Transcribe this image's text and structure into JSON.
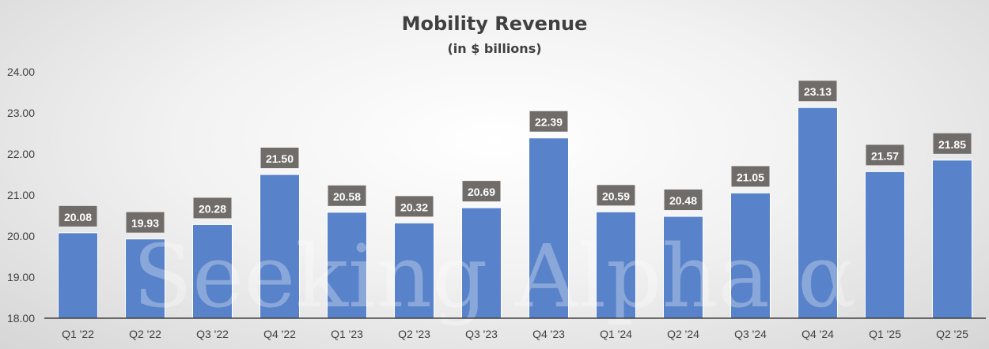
{
  "chart_data": {
    "type": "bar",
    "title": "Mobility Revenue",
    "subtitle": "(in $ billions)",
    "xlabel": "",
    "ylabel": "",
    "ylim": [
      18,
      24
    ],
    "yticks": [
      "18.00",
      "19.00",
      "20.00",
      "21.00",
      "22.00",
      "23.00",
      "24.00"
    ],
    "grid": false,
    "categories": [
      "Q1 '22",
      "Q2 '22",
      "Q3 '22",
      "Q4 '22",
      "Q1 '23",
      "Q2 '23",
      "Q3 '23",
      "Q4 '23",
      "Q1 '24",
      "Q2 '24",
      "Q3 '24",
      "Q4 '24",
      "Q1 '25",
      "Q2 '25"
    ],
    "values": [
      20.08,
      19.93,
      20.28,
      21.5,
      20.58,
      20.32,
      20.69,
      22.39,
      20.59,
      20.48,
      21.05,
      23.13,
      21.57,
      21.85
    ],
    "data_labels": [
      "20.08",
      "19.93",
      "20.28",
      "21.50",
      "20.58",
      "20.32",
      "20.69",
      "22.39",
      "20.59",
      "20.48",
      "21.05",
      "23.13",
      "21.57",
      "21.85"
    ],
    "bar_color": "#5882c9",
    "label_box_color": "#706c6a",
    "watermark": "Seeking Alpha α"
  }
}
